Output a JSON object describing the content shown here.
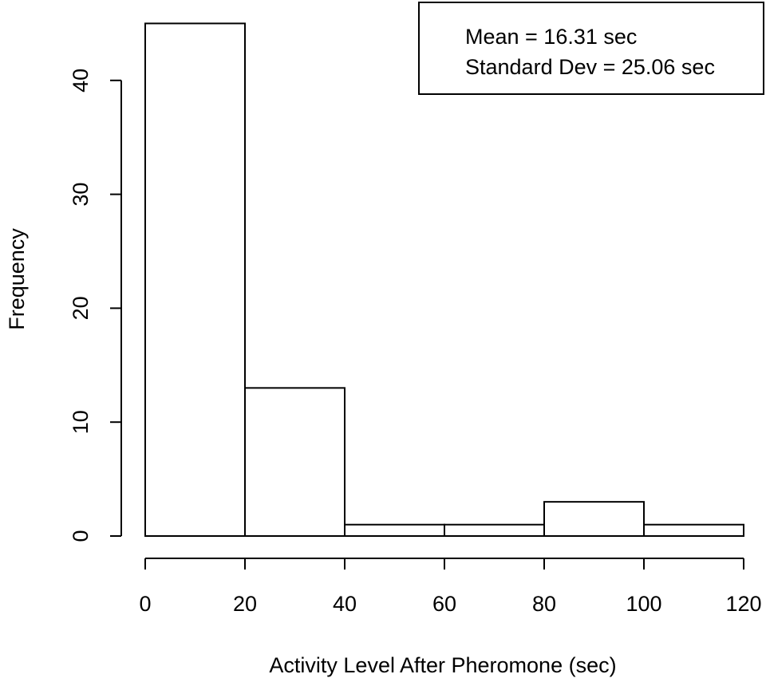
{
  "chart_data": {
    "type": "bar",
    "title": "",
    "xlabel": "Activity Level After Pheromone (sec)",
    "ylabel": "Frequency",
    "bins": [
      [
        0,
        20
      ],
      [
        20,
        40
      ],
      [
        40,
        60
      ],
      [
        60,
        80
      ],
      [
        80,
        100
      ],
      [
        100,
        120
      ]
    ],
    "values": [
      45,
      13,
      1,
      1,
      3,
      1
    ],
    "xlim": [
      0,
      120
    ],
    "ylim": [
      0,
      45
    ],
    "x_ticks": [
      "0",
      "20",
      "40",
      "60",
      "80",
      "100",
      "120"
    ],
    "y_ticks": [
      "0",
      "10",
      "20",
      "30",
      "40"
    ],
    "grid": false,
    "legend": {
      "placement": "top-right",
      "lines": [
        "Mean = 16.31 sec",
        "Standard Dev = 25.06 sec"
      ]
    }
  }
}
